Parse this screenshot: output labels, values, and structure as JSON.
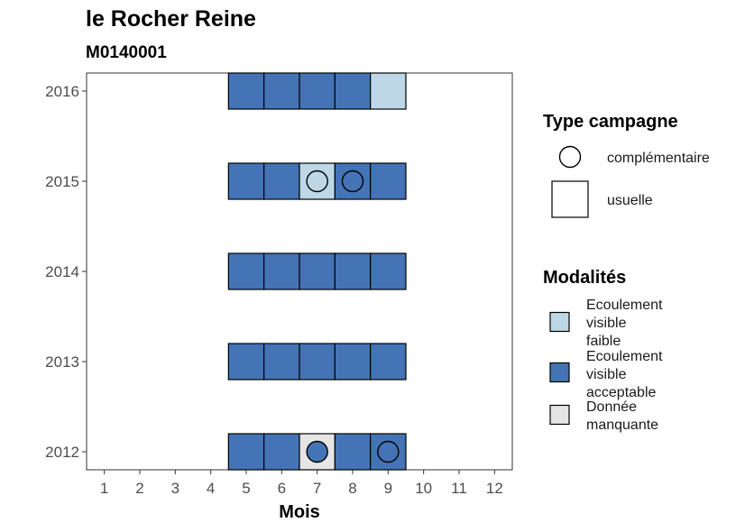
{
  "chart_data": {
    "type": "heatmap",
    "title": "le Rocher Reine",
    "subtitle": "M0140001",
    "xlabel": "Mois",
    "ylabel": "",
    "x_ticks": [
      "1",
      "2",
      "3",
      "4",
      "5",
      "6",
      "7",
      "8",
      "9",
      "10",
      "11",
      "12"
    ],
    "y_ticks": [
      "2012",
      "2013",
      "2014",
      "2015",
      "2016"
    ],
    "xlim": [
      0.5,
      12.5
    ],
    "ylim": [
      2011.8,
      2016.2
    ],
    "colors": {
      "Ecoulement visible faible": "#bdd7e7",
      "Ecoulement visible acceptable": "#4474b6",
      "Donnée manquante": "#e5e5e5"
    },
    "cells": [
      {
        "year": 2012,
        "month": 5,
        "modalite": "Ecoulement visible acceptable",
        "campagne": "usuelle"
      },
      {
        "year": 2012,
        "month": 6,
        "modalite": "Ecoulement visible acceptable",
        "campagne": "usuelle"
      },
      {
        "year": 2012,
        "month": 7,
        "modalite": "Donnée manquante",
        "campagne": "usuelle"
      },
      {
        "year": 2012,
        "month": 8,
        "modalite": "Ecoulement visible acceptable",
        "campagne": "usuelle"
      },
      {
        "year": 2012,
        "month": 9,
        "modalite": "Ecoulement visible acceptable",
        "campagne": "usuelle"
      },
      {
        "year": 2013,
        "month": 5,
        "modalite": "Ecoulement visible acceptable",
        "campagne": "usuelle"
      },
      {
        "year": 2013,
        "month": 6,
        "modalite": "Ecoulement visible acceptable",
        "campagne": "usuelle"
      },
      {
        "year": 2013,
        "month": 7,
        "modalite": "Ecoulement visible acceptable",
        "campagne": "usuelle"
      },
      {
        "year": 2013,
        "month": 8,
        "modalite": "Ecoulement visible acceptable",
        "campagne": "usuelle"
      },
      {
        "year": 2013,
        "month": 9,
        "modalite": "Ecoulement visible acceptable",
        "campagne": "usuelle"
      },
      {
        "year": 2014,
        "month": 5,
        "modalite": "Ecoulement visible acceptable",
        "campagne": "usuelle"
      },
      {
        "year": 2014,
        "month": 6,
        "modalite": "Ecoulement visible acceptable",
        "campagne": "usuelle"
      },
      {
        "year": 2014,
        "month": 7,
        "modalite": "Ecoulement visible acceptable",
        "campagne": "usuelle"
      },
      {
        "year": 2014,
        "month": 8,
        "modalite": "Ecoulement visible acceptable",
        "campagne": "usuelle"
      },
      {
        "year": 2014,
        "month": 9,
        "modalite": "Ecoulement visible acceptable",
        "campagne": "usuelle"
      },
      {
        "year": 2015,
        "month": 5,
        "modalite": "Ecoulement visible acceptable",
        "campagne": "usuelle"
      },
      {
        "year": 2015,
        "month": 6,
        "modalite": "Ecoulement visible acceptable",
        "campagne": "usuelle"
      },
      {
        "year": 2015,
        "month": 7,
        "modalite": "Ecoulement visible faible",
        "campagne": "usuelle"
      },
      {
        "year": 2015,
        "month": 8,
        "modalite": "Ecoulement visible acceptable",
        "campagne": "usuelle"
      },
      {
        "year": 2015,
        "month": 9,
        "modalite": "Ecoulement visible acceptable",
        "campagne": "usuelle"
      },
      {
        "year": 2016,
        "month": 5,
        "modalite": "Ecoulement visible acceptable",
        "campagne": "usuelle"
      },
      {
        "year": 2016,
        "month": 6,
        "modalite": "Ecoulement visible acceptable",
        "campagne": "usuelle"
      },
      {
        "year": 2016,
        "month": 7,
        "modalite": "Ecoulement visible acceptable",
        "campagne": "usuelle"
      },
      {
        "year": 2016,
        "month": 8,
        "modalite": "Ecoulement visible acceptable",
        "campagne": "usuelle"
      },
      {
        "year": 2016,
        "month": 9,
        "modalite": "Ecoulement visible faible",
        "campagne": "usuelle"
      }
    ],
    "points": [
      {
        "year": 2012,
        "month": 7,
        "modalite": "Ecoulement visible acceptable",
        "campagne": "complémentaire"
      },
      {
        "year": 2012,
        "month": 9,
        "modalite": "Ecoulement visible acceptable",
        "campagne": "complémentaire"
      },
      {
        "year": 2015,
        "month": 7,
        "modalite": "Ecoulement visible faible",
        "campagne": "complémentaire"
      },
      {
        "year": 2015,
        "month": 8,
        "modalite": "Ecoulement visible acceptable",
        "campagne": "complémentaire"
      }
    ],
    "legend_position": "right",
    "legend_campagne": {
      "title": "Type campagne",
      "items": [
        {
          "label": "complémentaire",
          "shape": "circle"
        },
        {
          "label": "usuelle",
          "shape": "square"
        }
      ]
    },
    "legend_modalites": {
      "title": "Modalités",
      "items": [
        {
          "lines": [
            "Ecoulement",
            "visible",
            "faible"
          ],
          "color": "#bdd7e7"
        },
        {
          "lines": [
            "Ecoulement",
            "visible",
            "acceptable"
          ],
          "color": "#4474b6"
        },
        {
          "lines": [
            "Donnée",
            "manquante"
          ],
          "color": "#e5e5e5"
        }
      ]
    },
    "grid": false
  }
}
